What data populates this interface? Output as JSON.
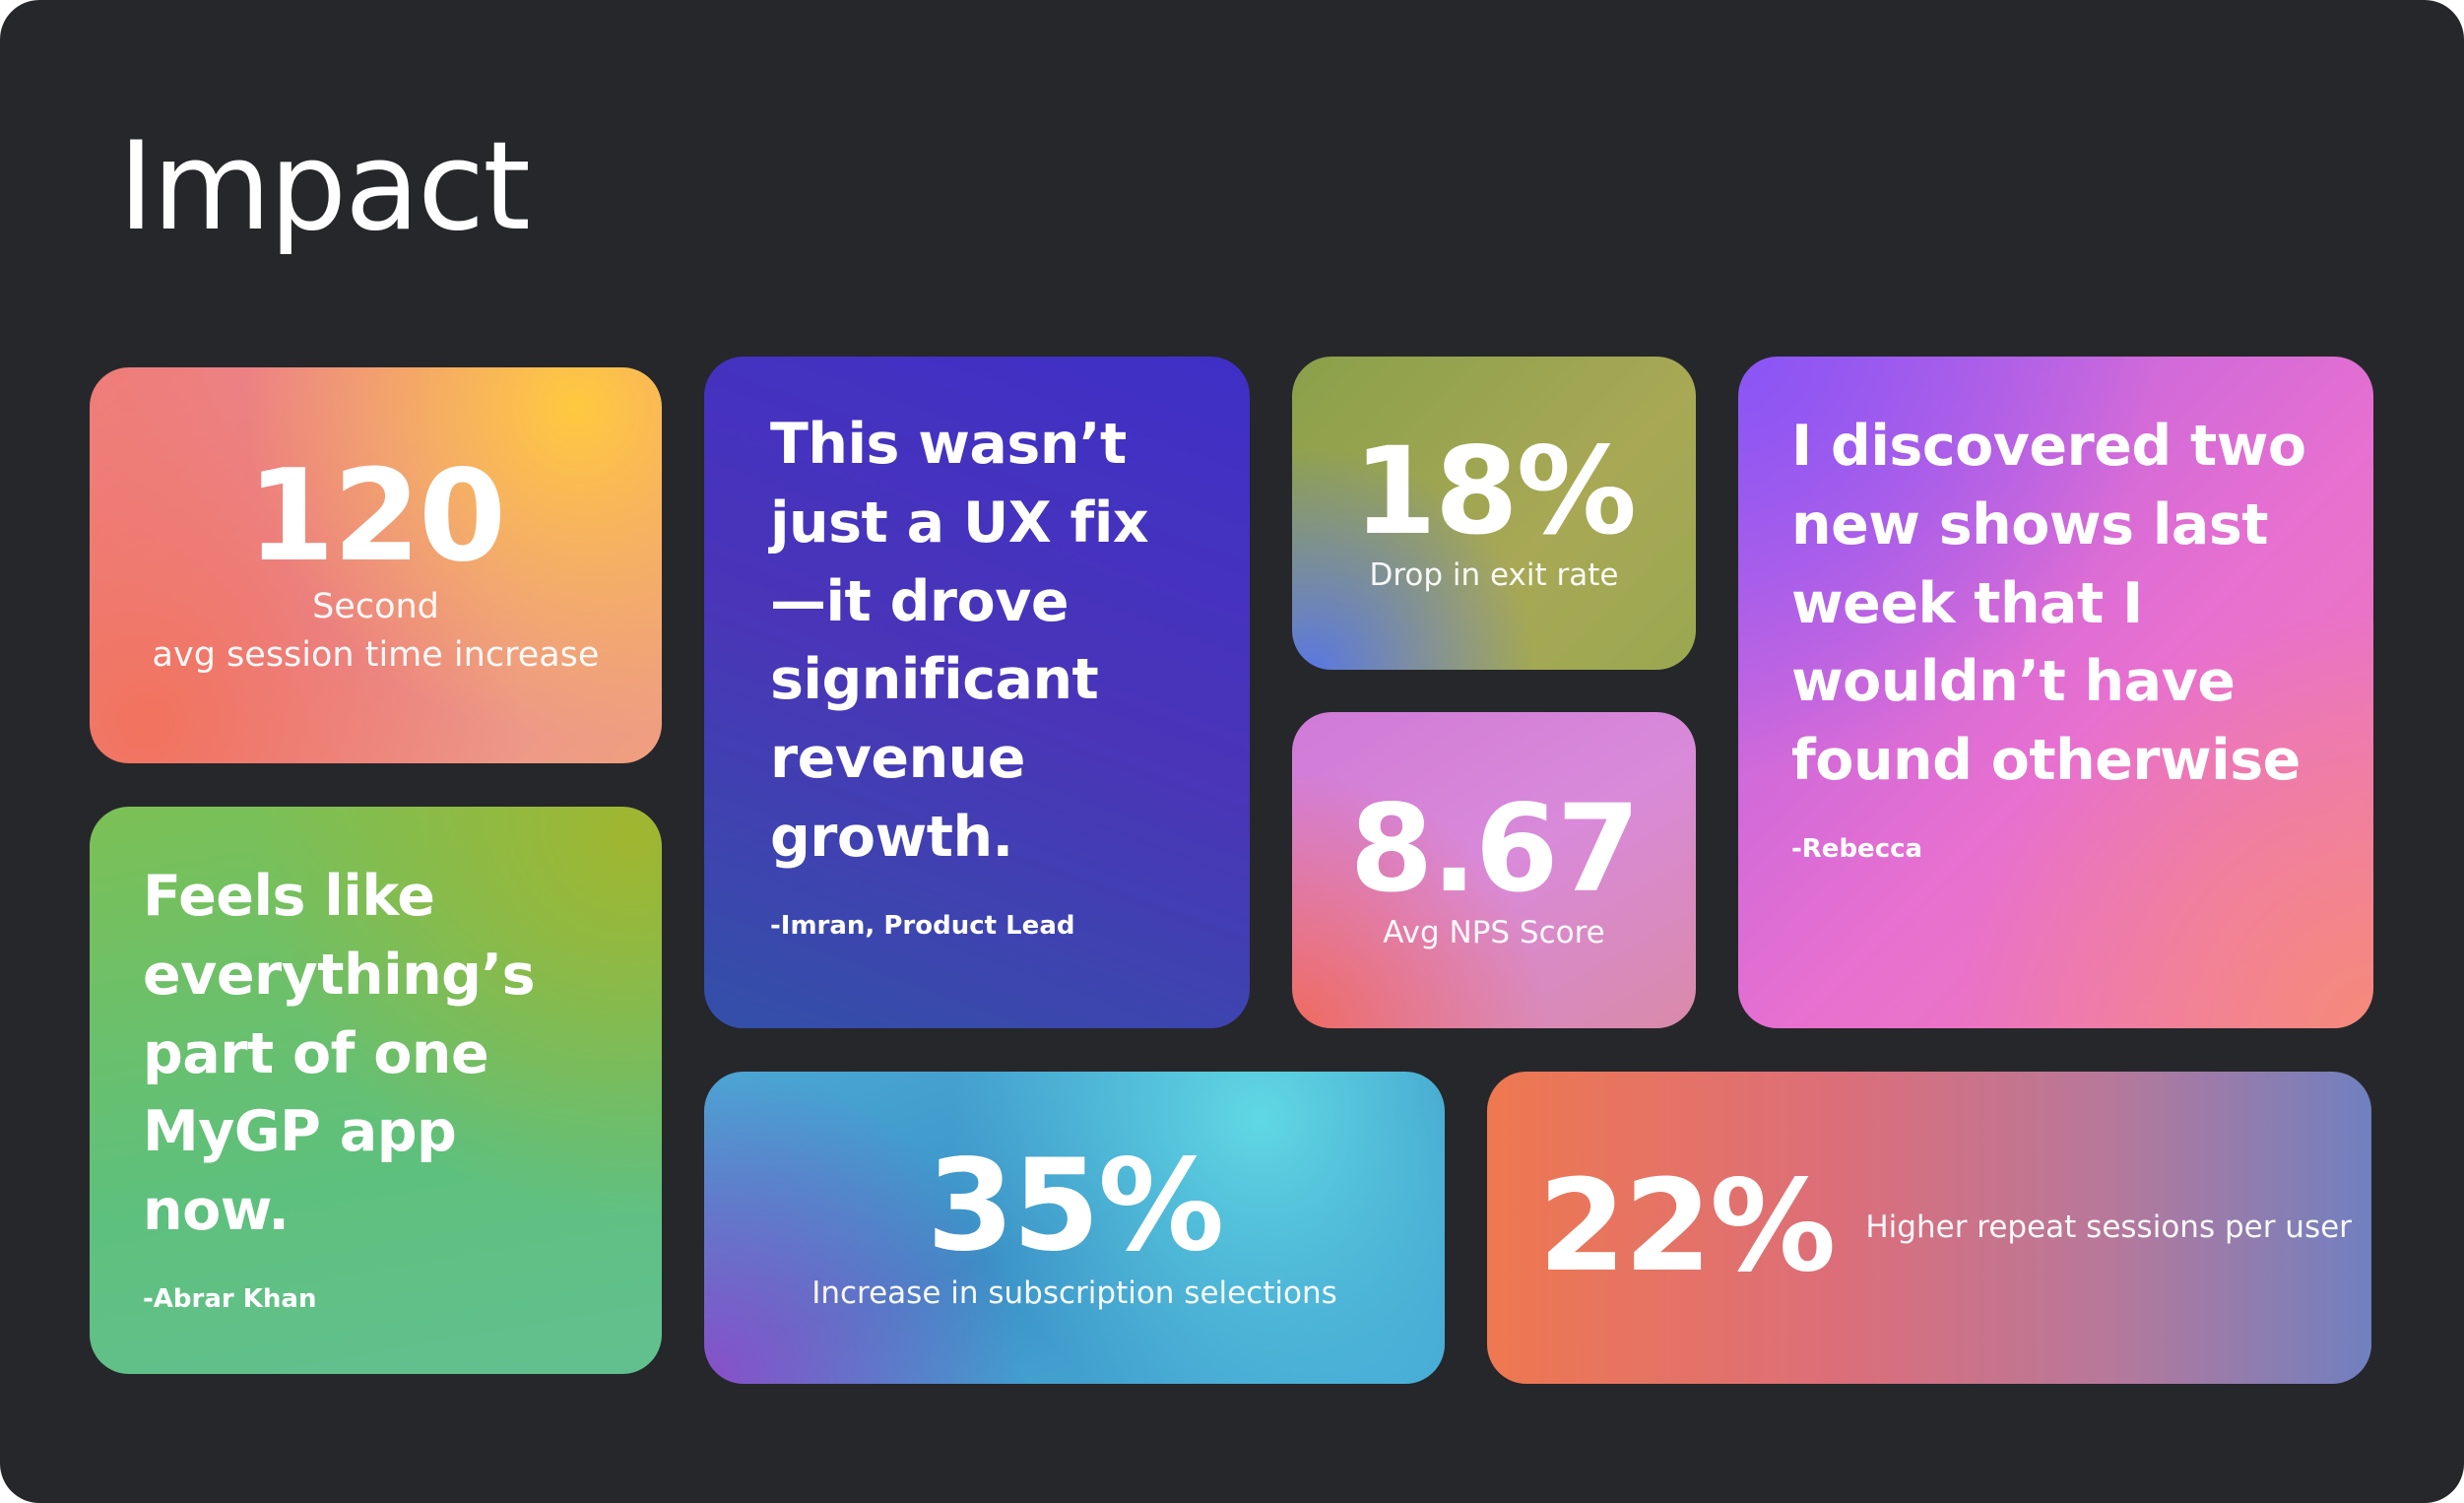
{
  "header": {
    "title": "Impact"
  },
  "stats": [
    {
      "value": "120",
      "label": "Second\navg session time increase"
    },
    {
      "value": "18%",
      "label": "Drop in exit rate"
    },
    {
      "value": "8.67",
      "label": "Avg NPS Score"
    },
    {
      "value": "35%",
      "label": "Increase in subscription selections"
    },
    {
      "value": "22%",
      "label": "Higher repeat sessions per user"
    }
  ],
  "quotes": [
    {
      "text": "This wasn’t\njust a UX fix\n—it drove\nsignificant\nrevenue\ngrowth.",
      "author": "-Imran, Product Lead"
    },
    {
      "text": "I discovered two\nnew shows last\nweek that I\nwouldn’t have\nfound otherwise",
      "author": "-Rebecca"
    },
    {
      "text": "Feels like\neverything’s\npart of one\nMyGP app\nnow.",
      "author": "-Abrar Khan"
    }
  ]
}
